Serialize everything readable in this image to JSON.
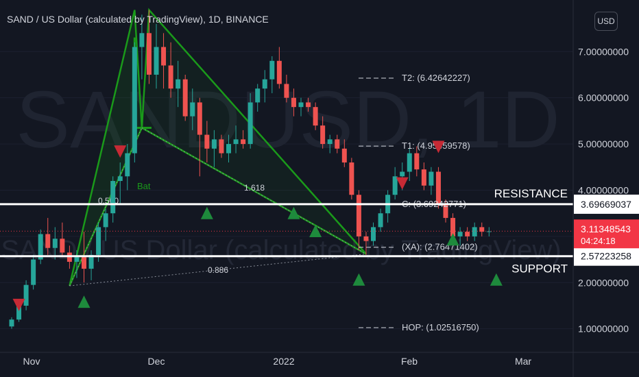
{
  "header": {
    "title": "SAND / US Dollar (calculated by TradingView), 1D, BINANCE",
    "currency_button": "USD"
  },
  "watermark": {
    "symbol": "SANDUSD, 1D",
    "name": "SAND / US Dollar (calculated by TradingView)"
  },
  "chart_data": {
    "type": "candlestick",
    "y_axis": {
      "ticks": [
        "7.00000000",
        "6.00000000",
        "5.00000000",
        "4.00000000",
        "3.00000000",
        "2.00000000",
        "1.00000000"
      ],
      "range": [
        0.55,
        7.85
      ]
    },
    "x_axis": {
      "ticks": [
        "Nov",
        "Dec",
        "2022",
        "Feb",
        "Mar"
      ]
    },
    "colors": {
      "up": "#26a69a",
      "down": "#ef5350",
      "pattern": "#1a9a1a",
      "level": "#ffffff",
      "bg": "#131722"
    },
    "levels": [
      {
        "name": "RESISTANCE",
        "price": 3.69669037,
        "label": "3.69669037"
      },
      {
        "name": "SUPPORT",
        "price": 2.57223258,
        "label": "2.57223258"
      }
    ],
    "current_price": {
      "label": "3.11348543",
      "countdown": "04:24:18",
      "price": 3.11348543,
      "color": "#f23645"
    },
    "targets": [
      {
        "label": "T2: (6.42642227)",
        "price": 6.42642227
      },
      {
        "label": "T1: (4.95459578)",
        "price": 4.95459578
      },
      {
        "label": "C: (3.69242771)",
        "price": 3.69242771
      },
      {
        "label": "(XA): (2.76471402)",
        "price": 2.76471402
      },
      {
        "label": "HOP: (1.02516750)",
        "price": 1.0251675
      }
    ],
    "pattern": {
      "name": "Bat",
      "ratios": [
        "0.500",
        "1.618",
        "0.886"
      ]
    },
    "markers": {
      "up_arrows": [
        {
          "day": 10,
          "price": 1.72
        },
        {
          "day": 27,
          "price": 3.64
        },
        {
          "day": 39,
          "price": 3.64
        },
        {
          "day": 42,
          "price": 3.25
        },
        {
          "day": 48,
          "price": 2.2
        },
        {
          "day": 61,
          "price": 3.07
        },
        {
          "day": 67,
          "price": 2.2
        }
      ],
      "down_arrows": [
        {
          "day": 1,
          "price": 1.65
        },
        {
          "day": 15,
          "price": 4.97
        },
        {
          "day": 54,
          "price": 4.28
        },
        {
          "day": 59,
          "price": 5.07
        }
      ]
    },
    "candles_ohlc_approx": [
      [
        1.05,
        1.25,
        1.0,
        1.2
      ],
      [
        1.2,
        1.55,
        1.15,
        1.5
      ],
      [
        1.5,
        2.05,
        1.4,
        1.95
      ],
      [
        1.95,
        2.6,
        1.85,
        2.5
      ],
      [
        2.5,
        3.15,
        2.4,
        3.05
      ],
      [
        3.05,
        3.4,
        2.6,
        2.75
      ],
      [
        2.75,
        3.2,
        2.5,
        2.95
      ],
      [
        2.95,
        3.3,
        2.55,
        2.65
      ],
      [
        2.65,
        2.8,
        2.3,
        2.45
      ],
      [
        2.45,
        2.7,
        2.1,
        2.55
      ],
      [
        2.55,
        3.1,
        2.0,
        2.3
      ],
      [
        2.3,
        2.7,
        2.05,
        2.6
      ],
      [
        2.6,
        3.3,
        2.45,
        3.2
      ],
      [
        3.2,
        3.6,
        2.9,
        3.5
      ],
      [
        3.5,
        4.3,
        3.3,
        4.2
      ],
      [
        4.2,
        4.6,
        3.7,
        4.3
      ],
      [
        4.3,
        5.0,
        4.0,
        4.8
      ],
      [
        4.8,
        7.2,
        4.6,
        7.1
      ],
      [
        7.1,
        7.8,
        6.4,
        7.4
      ],
      [
        7.4,
        7.9,
        6.3,
        6.5
      ],
      [
        6.5,
        7.6,
        6.2,
        7.1
      ],
      [
        7.1,
        7.4,
        6.2,
        6.7
      ],
      [
        6.7,
        7.2,
        6.0,
        6.2
      ],
      [
        6.2,
        6.8,
        5.8,
        6.4
      ],
      [
        6.4,
        6.5,
        5.5,
        5.6
      ],
      [
        5.6,
        6.2,
        5.3,
        5.9
      ],
      [
        5.9,
        6.0,
        4.3,
        5.2
      ],
      [
        5.2,
        5.5,
        4.6,
        4.9
      ],
      [
        4.9,
        5.3,
        4.5,
        5.1
      ],
      [
        5.1,
        5.2,
        4.7,
        4.8
      ],
      [
        4.8,
        5.2,
        4.6,
        5.0
      ],
      [
        5.0,
        5.4,
        4.8,
        5.1
      ],
      [
        5.1,
        5.3,
        4.9,
        5.0
      ],
      [
        5.0,
        6.1,
        4.9,
        5.9
      ],
      [
        5.9,
        6.3,
        5.7,
        6.2
      ],
      [
        6.2,
        6.6,
        5.9,
        6.4
      ],
      [
        6.4,
        6.9,
        6.1,
        6.8
      ],
      [
        6.8,
        7.1,
        6.2,
        6.3
      ],
      [
        6.3,
        6.5,
        5.9,
        6.0
      ],
      [
        6.0,
        6.2,
        5.6,
        5.8
      ],
      [
        5.8,
        6.0,
        5.6,
        5.9
      ],
      [
        5.9,
        6.0,
        5.7,
        5.8
      ],
      [
        5.8,
        5.9,
        5.3,
        5.4
      ],
      [
        5.4,
        5.6,
        4.9,
        5.0
      ],
      [
        5.0,
        5.2,
        4.8,
        5.1
      ],
      [
        5.1,
        5.2,
        4.8,
        4.9
      ],
      [
        4.9,
        5.1,
        4.5,
        4.6
      ],
      [
        4.6,
        4.7,
        3.8,
        3.9
      ],
      [
        3.9,
        4.0,
        2.7,
        3.0
      ],
      [
        3.0,
        3.1,
        2.6,
        2.9
      ],
      [
        2.9,
        3.3,
        2.8,
        3.2
      ],
      [
        3.2,
        3.6,
        3.1,
        3.5
      ],
      [
        3.5,
        4.0,
        3.3,
        3.9
      ],
      [
        3.9,
        4.5,
        3.8,
        4.3
      ],
      [
        4.3,
        4.6,
        4.0,
        4.4
      ],
      [
        4.4,
        4.9,
        4.2,
        4.8
      ],
      [
        4.8,
        4.95,
        4.3,
        4.45
      ],
      [
        4.45,
        4.6,
        4.0,
        4.1
      ],
      [
        4.1,
        4.5,
        3.9,
        4.4
      ],
      [
        4.4,
        4.5,
        3.6,
        3.7
      ],
      [
        3.7,
        3.8,
        3.3,
        3.4
      ],
      [
        3.4,
        3.5,
        2.9,
        3.0
      ],
      [
        3.0,
        3.2,
        2.8,
        3.1
      ],
      [
        3.1,
        3.2,
        2.9,
        3.0
      ],
      [
        3.0,
        3.3,
        2.9,
        3.2
      ],
      [
        3.2,
        3.3,
        3.0,
        3.1
      ],
      [
        3.1,
        3.2,
        3.0,
        3.11
      ]
    ]
  }
}
